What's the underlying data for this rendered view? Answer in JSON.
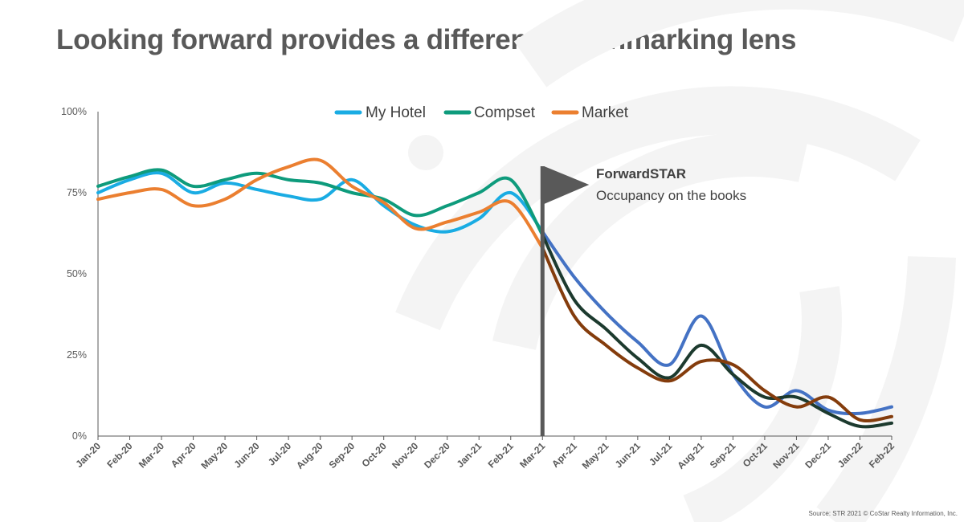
{
  "title": "Looking forward provides a different benchmarking lens",
  "source": "Source: STR 2021 © CoStar Realty Information, Inc.",
  "colors": {
    "my_hotel": "#1AACE3",
    "compset": "#0E9B7C",
    "market": "#EB7F30",
    "my_hotel_forward": "#4472C4",
    "compset_forward": "#1C3A2E",
    "market_forward": "#843C0C",
    "flag": "#595959"
  },
  "annotation": {
    "title": "ForwardSTAR",
    "subtitle": "Occupancy on the books",
    "at": "Mar-21"
  },
  "chart_data": {
    "type": "line",
    "title": "Looking forward provides a different benchmarking lens",
    "xlabel": "",
    "ylabel": "",
    "ylim": [
      0,
      100
    ],
    "y_ticks": [
      "0%",
      "25%",
      "50%",
      "75%",
      "100%"
    ],
    "legend": "top-center",
    "categories": [
      "Jan-20",
      "Feb-20",
      "Mar-20",
      "Apr-20",
      "May-20",
      "Jun-20",
      "Jul-20",
      "Aug-20",
      "Sep-20",
      "Oct-20",
      "Nov-20",
      "Dec-20",
      "Jan-21",
      "Feb-21",
      "Mar-21",
      "Apr-21",
      "May-21",
      "Jun-21",
      "Jul-21",
      "Aug-21",
      "Sep-21",
      "Oct-21",
      "Nov-21",
      "Dec-21",
      "Jan-22",
      "Feb-22"
    ],
    "series": [
      {
        "name": "My Hotel",
        "values": [
          75,
          79,
          81,
          75,
          78,
          76,
          74,
          73,
          79,
          71,
          65,
          63,
          67,
          75,
          63,
          49,
          38,
          29,
          22,
          37,
          19,
          9,
          14,
          8,
          7,
          9
        ]
      },
      {
        "name": "Compset",
        "values": [
          77,
          80,
          82,
          77,
          79,
          81,
          79,
          78,
          75,
          73,
          68,
          71,
          75,
          79,
          62,
          42,
          33,
          24,
          18,
          28,
          19,
          12,
          12,
          7,
          3,
          4
        ]
      },
      {
        "name": "Market",
        "values": [
          73,
          75,
          76,
          71,
          73,
          79,
          83,
          85,
          77,
          72,
          64,
          66,
          69,
          72,
          58,
          37,
          28,
          21,
          17,
          23,
          22,
          14,
          9,
          12,
          5,
          6
        ]
      }
    ]
  }
}
